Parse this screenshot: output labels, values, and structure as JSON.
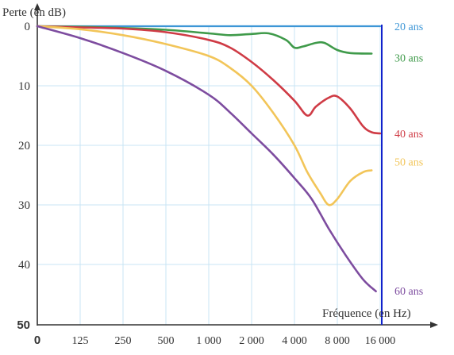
{
  "chart_data": {
    "type": "line",
    "title": "",
    "ylabel": "Perte (en dB)",
    "xlabel": "Fréquence (en Hz)",
    "x_ticks": [
      "0",
      "125",
      "250",
      "500",
      "1 000",
      "2 000",
      "4 000",
      "8 000",
      "16 000"
    ],
    "y_ticks": [
      "0",
      "10",
      "20",
      "30",
      "40",
      "50"
    ],
    "ylim": [
      0,
      50
    ],
    "y_inverted": true,
    "grid": true,
    "legend": "series labels at right end of each curve",
    "series": [
      {
        "name": "20 ans",
        "color": "#3d96d6",
        "points": [
          [
            0,
            0
          ],
          [
            1,
            0
          ],
          [
            2,
            0
          ],
          [
            3,
            0
          ],
          [
            4,
            0
          ],
          [
            5,
            0
          ],
          [
            6,
            0
          ],
          [
            7,
            0
          ],
          [
            8,
            0
          ]
        ]
      },
      {
        "name": "30 ans",
        "color": "#3f9a4a",
        "points": [
          [
            0,
            0
          ],
          [
            1,
            0.1
          ],
          [
            2,
            0.3
          ],
          [
            3,
            0.6
          ],
          [
            4,
            1.2
          ],
          [
            4.5,
            1.5
          ],
          [
            5,
            1.3
          ],
          [
            5.4,
            1.2
          ],
          [
            5.8,
            2.3
          ],
          [
            6,
            3.6
          ],
          [
            6.2,
            3.4
          ],
          [
            6.5,
            2.8
          ],
          [
            6.7,
            2.8
          ],
          [
            7,
            4.0
          ],
          [
            7.3,
            4.5
          ],
          [
            7.8,
            4.6
          ]
        ]
      },
      {
        "name": "40 ans",
        "color": "#cf3b45",
        "points": [
          [
            0,
            0
          ],
          [
            1,
            0.2
          ],
          [
            2,
            0.4
          ],
          [
            3,
            1.0
          ],
          [
            4,
            2.3
          ],
          [
            4.5,
            3.6
          ],
          [
            5,
            6.0
          ],
          [
            5.5,
            9.0
          ],
          [
            6,
            12.5
          ],
          [
            6.3,
            15.0
          ],
          [
            6.5,
            13.5
          ],
          [
            6.8,
            12.0
          ],
          [
            7,
            11.8
          ],
          [
            7.3,
            13.8
          ],
          [
            7.6,
            16.8
          ],
          [
            7.8,
            17.8
          ],
          [
            8,
            18.0
          ]
        ]
      },
      {
        "name": "50 ans",
        "color": "#f2c559",
        "points": [
          [
            0,
            0
          ],
          [
            1,
            0.5
          ],
          [
            2,
            1.5
          ],
          [
            3,
            3.0
          ],
          [
            4,
            5.0
          ],
          [
            4.5,
            7.0
          ],
          [
            5,
            10.0
          ],
          [
            5.5,
            14.5
          ],
          [
            6,
            20.0
          ],
          [
            6.3,
            24.5
          ],
          [
            6.6,
            28.0
          ],
          [
            6.8,
            30.0
          ],
          [
            7,
            29.0
          ],
          [
            7.3,
            26.0
          ],
          [
            7.6,
            24.5
          ],
          [
            7.8,
            24.2
          ]
        ]
      },
      {
        "name": "60 ans",
        "color": "#7d4c9f",
        "points": [
          [
            0,
            0
          ],
          [
            1,
            2.0
          ],
          [
            2,
            4.5
          ],
          [
            3,
            7.5
          ],
          [
            4,
            11.5
          ],
          [
            4.5,
            14.5
          ],
          [
            5,
            18.0
          ],
          [
            5.5,
            21.5
          ],
          [
            6,
            25.5
          ],
          [
            6.4,
            29.0
          ],
          [
            6.8,
            34.0
          ],
          [
            7.2,
            38.5
          ],
          [
            7.6,
            42.5
          ],
          [
            7.9,
            44.5
          ]
        ]
      }
    ]
  },
  "colors": {
    "axis": "#333333",
    "grid": "#c8e4f4",
    "marker_line": "#1122cc"
  }
}
